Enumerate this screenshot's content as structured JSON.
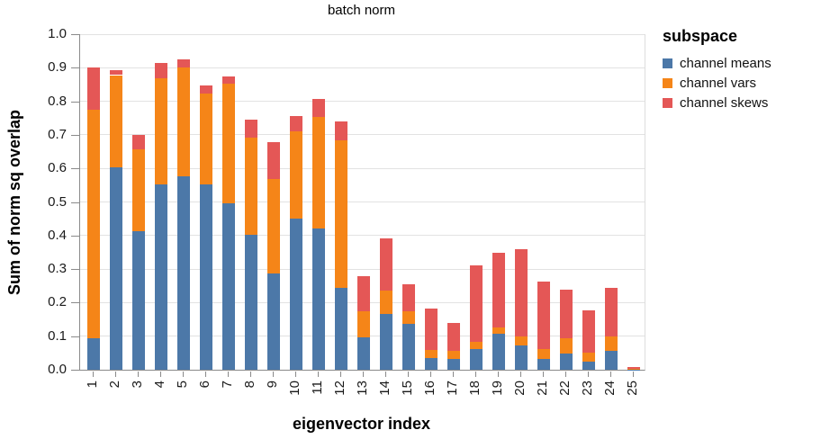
{
  "chart_data": {
    "type": "bar",
    "stacked": true,
    "title": "batch norm",
    "xlabel": "eigenvector index",
    "ylabel": "Sum of norm sq overlap",
    "ylim": [
      0,
      1
    ],
    "grid": true,
    "ytick_labels": [
      "0.0",
      "0.1",
      "0.2",
      "0.3",
      "0.4",
      "0.5",
      "0.6",
      "0.7",
      "0.8",
      "0.9",
      "1.0"
    ],
    "categories": [
      "1",
      "2",
      "3",
      "4",
      "5",
      "6",
      "7",
      "8",
      "9",
      "10",
      "11",
      "12",
      "13",
      "14",
      "15",
      "16",
      "17",
      "18",
      "19",
      "20",
      "21",
      "22",
      "23",
      "24",
      "25"
    ],
    "legend": {
      "title": "subspace",
      "position": "right"
    },
    "series": [
      {
        "name": "channel means",
        "color": "#4c78a8",
        "values": [
          0.095,
          0.602,
          0.413,
          0.553,
          0.576,
          0.553,
          0.497,
          0.403,
          0.288,
          0.451,
          0.42,
          0.245,
          0.096,
          0.165,
          0.136,
          0.035,
          0.033,
          0.062,
          0.106,
          0.073,
          0.031,
          0.048,
          0.024,
          0.055,
          0.001
        ]
      },
      {
        "name": "channel vars",
        "color": "#f58518",
        "values": [
          0.68,
          0.276,
          0.245,
          0.316,
          0.326,
          0.271,
          0.355,
          0.288,
          0.28,
          0.259,
          0.333,
          0.438,
          0.077,
          0.072,
          0.038,
          0.025,
          0.023,
          0.021,
          0.021,
          0.027,
          0.031,
          0.046,
          0.027,
          0.043,
          0.001
        ]
      },
      {
        "name": "channel skews",
        "color": "#e45756",
        "values": [
          0.125,
          0.016,
          0.042,
          0.044,
          0.023,
          0.024,
          0.023,
          0.053,
          0.11,
          0.047,
          0.055,
          0.057,
          0.107,
          0.155,
          0.081,
          0.122,
          0.084,
          0.227,
          0.221,
          0.258,
          0.2,
          0.144,
          0.127,
          0.147,
          0.005
        ]
      }
    ]
  }
}
